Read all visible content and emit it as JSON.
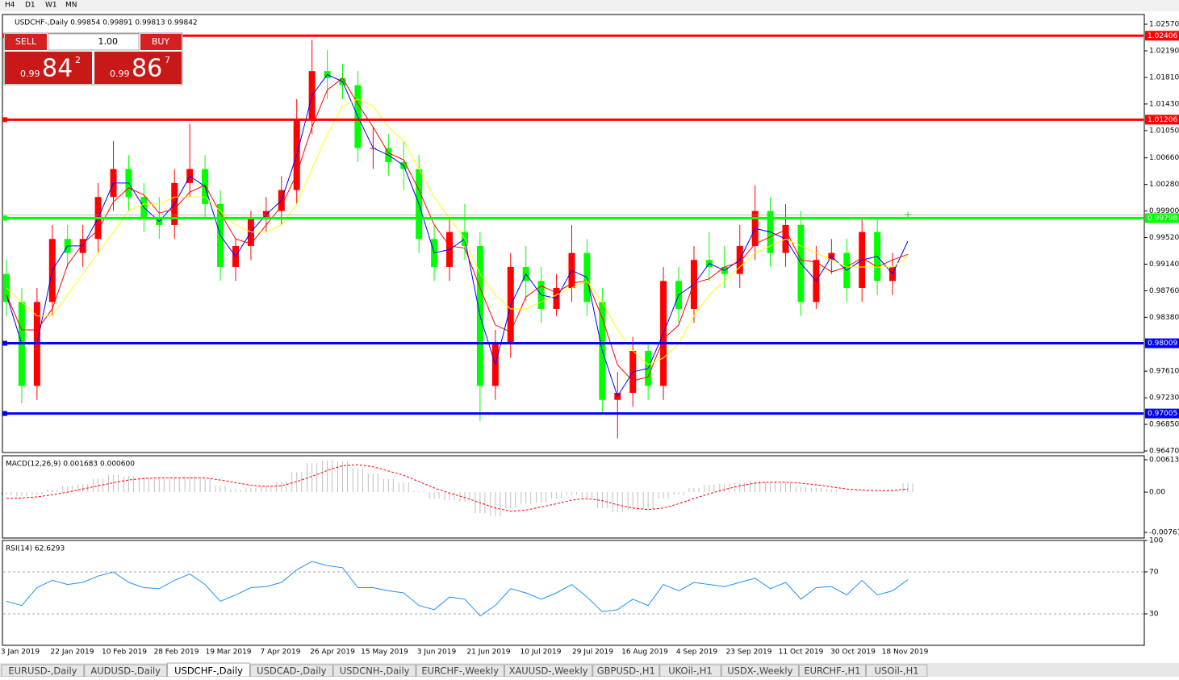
{
  "toolbar": {
    "timeframes": [
      "H4",
      "D1",
      "W1",
      "MN"
    ]
  },
  "trade_panel": {
    "sell": "SELL",
    "lot": "1.00",
    "buy": "BUY",
    "sell_big": "0.99",
    "sell_main": "84",
    "sell_sup": "2",
    "buy_big": "0.99",
    "buy_main": "86",
    "buy_sup": "7"
  },
  "chart_data": [
    {
      "type": "candlestick",
      "title": "USDCHF-,Daily 0.99854 0.99891 0.99813 0.99842",
      "up_color": "#ff0000",
      "down_color": "#00ff00",
      "open": [
        0.99,
        0.986,
        0.974,
        0.986,
        0.995,
        0.993,
        0.995,
        1.001,
        1.005,
        1.001,
        0.998,
        0.997,
        1.003,
        1.005,
        1.0,
        0.991,
        0.994,
        0.998,
        0.999,
        1.002,
        1.012,
        1.019,
        1.018,
        1.017,
        1.008,
        1.008,
        1.006,
        1.005,
        0.995,
        0.991,
        0.996,
        0.994,
        0.974,
        0.98,
        0.991,
        0.989,
        0.985,
        0.988,
        0.993,
        0.986,
        0.972,
        0.973,
        0.979,
        0.974,
        0.989,
        0.985,
        0.992,
        0.991,
        0.99,
        0.994,
        0.999,
        0.993,
        0.997,
        0.986,
        0.992,
        0.993,
        0.988,
        0.996,
        0.989,
        0.99854
      ],
      "high": [
        0.992,
        0.988,
        0.988,
        0.997,
        0.997,
        0.997,
        1.003,
        1.009,
        1.007,
        1.003,
        1.001,
        1.005,
        1.0115,
        1.007,
        1.002,
        0.995,
        0.999,
        1.001,
        1.004,
        1.015,
        1.0235,
        1.022,
        1.02,
        1.019,
        1.011,
        1.01,
        1.009,
        1.007,
        0.997,
        0.998,
        1.0,
        0.996,
        0.982,
        0.993,
        0.994,
        0.991,
        0.99,
        0.997,
        0.995,
        0.988,
        0.976,
        0.981,
        0.98,
        0.991,
        0.991,
        0.994,
        0.996,
        0.994,
        0.997,
        1.0027,
        1.001,
        1.0,
        0.999,
        0.994,
        0.995,
        0.995,
        0.998,
        0.998,
        0.993,
        0.99891
      ],
      "low": [
        0.984,
        0.9715,
        0.972,
        0.984,
        0.991,
        0.991,
        0.993,
        0.999,
        0.999,
        0.996,
        0.995,
        0.995,
        1.001,
        0.998,
        0.989,
        0.989,
        0.992,
        0.996,
        0.997,
        1.0,
        1.01,
        1.015,
        1.015,
        1.006,
        1.005,
        1.004,
        1.002,
        0.993,
        0.989,
        0.989,
        0.992,
        0.969,
        0.972,
        0.978,
        0.986,
        0.983,
        0.984,
        0.986,
        0.984,
        0.97,
        0.9665,
        0.971,
        0.972,
        0.972,
        0.983,
        0.983,
        0.989,
        0.988,
        0.988,
        0.992,
        0.991,
        0.991,
        0.984,
        0.985,
        0.99,
        0.986,
        0.986,
        0.987,
        0.987,
        0.99813
      ],
      "close": [
        0.986,
        0.974,
        0.986,
        0.995,
        0.993,
        0.995,
        1.001,
        1.005,
        1.001,
        0.998,
        0.997,
        1.003,
        1.005,
        1.0,
        0.991,
        0.994,
        0.998,
        0.999,
        1.002,
        1.012,
        1.019,
        1.018,
        1.017,
        1.008,
        1.008,
        1.006,
        1.005,
        0.995,
        0.991,
        0.996,
        0.994,
        0.974,
        0.98,
        0.991,
        0.989,
        0.985,
        0.988,
        0.993,
        0.986,
        0.972,
        0.973,
        0.979,
        0.974,
        0.989,
        0.985,
        0.992,
        0.991,
        0.99,
        0.994,
        0.999,
        0.993,
        0.997,
        0.986,
        0.992,
        0.993,
        0.988,
        0.996,
        0.989,
        0.991,
        0.99842
      ],
      "series": [
        {
          "color": "#0000ff",
          "values": [
            0.987,
            0.98,
            0.98,
            0.9905,
            0.994,
            0.994,
            0.998,
            1.003,
            1.003,
            0.9995,
            0.9975,
            1.0,
            1.004,
            1.0025,
            0.9955,
            0.9925,
            0.996,
            0.9985,
            1.0005,
            1.007,
            1.0155,
            1.0185,
            1.0175,
            1.0125,
            1.008,
            1.007,
            1.0055,
            1.0,
            0.993,
            0.9935,
            0.995,
            0.984,
            0.977,
            0.9855,
            0.99,
            0.987,
            0.9865,
            0.9905,
            0.9895,
            0.979,
            0.9725,
            0.976,
            0.9765,
            0.9815,
            0.987,
            0.9885,
            0.9915,
            0.9905,
            0.992,
            0.9965,
            0.996,
            0.995,
            0.9915,
            0.989,
            0.9925,
            0.9905,
            0.992,
            0.9925,
            0.99,
            0.9947
          ]
        },
        {
          "color": "#ff0000",
          "values": [
            0.987,
            0.982,
            0.982,
            0.985,
            0.9913,
            0.9943,
            0.9963,
            1.0003,
            1.0023,
            1.0013,
            0.9987,
            0.9993,
            1.0017,
            1.0027,
            0.9987,
            0.995,
            0.9943,
            0.997,
            0.9997,
            1.0043,
            1.011,
            1.0163,
            1.018,
            1.0143,
            1.011,
            1.0073,
            1.0063,
            1.002,
            0.997,
            0.994,
            0.9937,
            0.988,
            0.9827,
            0.9817,
            0.9867,
            0.9883,
            0.9873,
            0.9887,
            0.989,
            0.9837,
            0.977,
            0.9747,
            0.9753,
            0.9807,
            0.9827,
            0.9887,
            0.9893,
            0.991,
            0.9917,
            0.9943,
            0.9953,
            0.9963,
            0.992,
            0.9917,
            0.9903,
            0.991,
            0.9923,
            0.991,
            0.992,
            0.9928
          ]
        },
        {
          "color": "#ffff00",
          "values": [
            0.988,
            0.986,
            0.984,
            0.984,
            0.987,
            0.99,
            0.993,
            0.996,
            0.999,
            1.0,
            1.0,
            1.001,
            1.001,
            1.001,
            0.999,
            0.997,
            0.996,
            0.996,
            0.997,
            1.0,
            1.005,
            1.01,
            1.014,
            1.015,
            1.014,
            1.011,
            1.009,
            1.005,
            1.001,
            0.998,
            0.995,
            0.99,
            0.987,
            0.985,
            0.985,
            0.986,
            0.987,
            0.988,
            0.989,
            0.986,
            0.982,
            0.979,
            0.977,
            0.978,
            0.98,
            0.984,
            0.987,
            0.989,
            0.991,
            0.993,
            0.994,
            0.995,
            0.994,
            0.993,
            0.992,
            0.991,
            0.991,
            0.991,
            0.991,
            0.9925
          ]
        }
      ],
      "levels": [
        {
          "value": 1.02406,
          "color": "#ff0000"
        },
        {
          "value": 1.01206,
          "color": "#ff0000"
        },
        {
          "value": 0.99798,
          "color": "#00ff00"
        },
        {
          "value": 0.98009,
          "color": "#0000ff"
        },
        {
          "value": 0.97005,
          "color": "#0000ff"
        }
      ],
      "ylim": [
        0.96447,
        1.02709
      ],
      "yticks": [
        {
          "value": 1.0257,
          "label": "1.02570"
        },
        {
          "value": 1.0219,
          "label": "1.02190"
        },
        {
          "value": 1.0181,
          "label": "1.01810"
        },
        {
          "value": 1.0143,
          "label": "1.01430"
        },
        {
          "value": 1.0105,
          "label": "1.01050"
        },
        {
          "value": 1.0066,
          "label": "1.00660"
        },
        {
          "value": 1.0028,
          "label": "1.00280"
        },
        {
          "value": 0.999,
          "label": "0.99900"
        },
        {
          "value": 0.9952,
          "label": "0.99520"
        },
        {
          "value": 0.9914,
          "label": "0.99140"
        },
        {
          "value": 0.9876,
          "label": "0.98760"
        },
        {
          "value": 0.9838,
          "label": "0.98380"
        },
        {
          "value": 0.9761,
          "label": "0.97610"
        },
        {
          "value": 0.9723,
          "label": "0.97230"
        },
        {
          "value": 0.9685,
          "label": "0.96850"
        },
        {
          "value": 0.9647,
          "label": "0.96470"
        }
      ]
    },
    {
      "type": "macd",
      "title": "MACD(12,26,9) 0.001683 0.000600",
      "series": [
        {
          "color": "#c0c0c0",
          "values": [
            -0.0005,
            -0.0008,
            -0.0005,
            0.0005,
            0.0012,
            0.0015,
            0.0025,
            0.0033,
            0.003,
            0.0028,
            0.0025,
            0.0027,
            0.003,
            0.0025,
            0.0012,
            0.0005,
            0.0008,
            0.0012,
            0.002,
            0.0038,
            0.0055,
            0.006,
            0.0058,
            0.0045,
            0.0035,
            0.0025,
            0.0018,
            0.0002,
            -0.0012,
            -0.0015,
            -0.0018,
            -0.004,
            -0.0045,
            -0.003,
            -0.0022,
            -0.002,
            -0.0012,
            -0.0005,
            -0.001,
            -0.003,
            -0.0038,
            -0.0035,
            -0.0032,
            -0.0012,
            -0.0005,
            0.0008,
            0.0014,
            0.0016,
            0.0018,
            0.0022,
            0.002,
            0.0018,
            0.001,
            0.0008,
            0.0006,
            0.0002,
            0.0004,
            0.0003,
            0.0004,
            0.001683
          ]
        },
        {
          "color": "#ff0000",
          "values": [
            -0.0012,
            -0.0011,
            -0.0009,
            -0.0005,
            0,
            0.0006,
            0.0012,
            0.0018,
            0.0023,
            0.0026,
            0.0027,
            0.0027,
            0.0027,
            0.0027,
            0.0023,
            0.0018,
            0.0013,
            0.0011,
            0.0012,
            0.002,
            0.003,
            0.0041,
            0.005,
            0.0052,
            0.0048,
            0.004,
            0.0032,
            0.002,
            0.0008,
            -0.0002,
            -0.001,
            -0.002,
            -0.003,
            -0.0036,
            -0.0034,
            -0.0028,
            -0.0022,
            -0.0015,
            -0.0012,
            -0.0016,
            -0.0024,
            -0.003,
            -0.0033,
            -0.003,
            -0.0022,
            -0.0012,
            -0.0003,
            0.0005,
            0.0012,
            0.0017,
            0.0019,
            0.0019,
            0.0017,
            0.0014,
            0.001,
            0.0006,
            0.0004,
            0.0003,
            0.0003,
            0.0006
          ]
        }
      ],
      "ylim": [
        -0.00868,
        0.00689
      ],
      "yticks": [
        0.00613,
        {
          "value": 0,
          "label": "0.00"
        },
        -0.007612
      ]
    },
    {
      "type": "rsi",
      "title": "RSI(14) 62.6293",
      "series": [
        {
          "color": "#1e90ff",
          "values": [
            42,
            38,
            55,
            62,
            58,
            60,
            66,
            70,
            60,
            55,
            54,
            62,
            68,
            58,
            42,
            48,
            55,
            56,
            60,
            72,
            80,
            76,
            74,
            55,
            55,
            52,
            50,
            38,
            34,
            46,
            44,
            28,
            38,
            54,
            50,
            44,
            50,
            58,
            46,
            32,
            34,
            44,
            38,
            58,
            52,
            60,
            58,
            56,
            60,
            64,
            54,
            60,
            44,
            55,
            56,
            48,
            62,
            48,
            52,
            62.6293
          ]
        }
      ],
      "ylim": [
        0,
        100
      ],
      "yticks": [
        100,
        70,
        30
      ],
      "x_labels": [
        "3 Jan 2019",
        "22 Jan 2019",
        "10 Feb 2019",
        "28 Feb 2019",
        "19 Mar 2019",
        "7 Apr 2019",
        "26 Apr 2019",
        "15 May 2019",
        "3 Jun 2019",
        "21 Jun 2019",
        "10 Jul 2019",
        "29 Jul 2019",
        "16 Aug 2019",
        "4 Sep 2019",
        "23 Sep 2019",
        "11 Oct 2019",
        "30 Oct 2019",
        "18 Nov 2019"
      ]
    }
  ],
  "tabs": {
    "items": [
      "EURUSD-,Daily",
      "AUDUSD-,Daily",
      "USDCHF-,Daily",
      "USDCAD-,Daily",
      "USDCNH-,Daily",
      "EURCHF-,Weekly",
      "XAUUSD-,Weekly",
      "GBPUSD-,H1",
      "UKOil-,H1",
      "USDX-,Weekly",
      "EURCHF-,H1",
      "USOil-,H1"
    ],
    "active": 2
  }
}
